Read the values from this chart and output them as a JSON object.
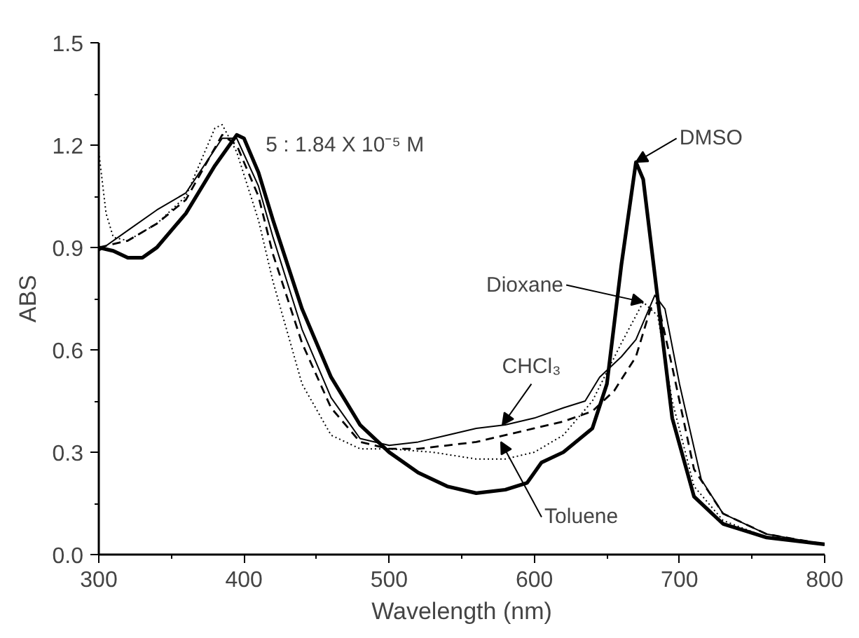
{
  "chart_data": {
    "type": "line",
    "xlabel": "Wavelength (nm)",
    "ylabel": "ABS",
    "xlim": [
      300,
      800
    ],
    "xticks": [
      300,
      400,
      500,
      600,
      700,
      800
    ],
    "ylim": [
      0,
      1.5
    ],
    "yticks": [
      {
        "value": 0,
        "label": "0.0"
      },
      0.3,
      0.6,
      0.9,
      1.2,
      1.5
    ],
    "grid": false,
    "annotations": [
      "5 : 1.84 X 10⁻⁵ M",
      {
        "text": "DMSO",
        "x": 670,
        "y": 1.15
      },
      {
        "text": "Dioxane",
        "x": 675,
        "y": 0.74
      },
      {
        "text": "CHCl₃",
        "x": 578,
        "y": 0.38
      },
      {
        "text": "Toluene",
        "x": 577,
        "y": 0.33
      }
    ],
    "series": [
      {
        "color": "#000000",
        "line_style": "solid",
        "x": [
          300,
          310,
          320,
          330,
          340,
          360,
          380,
          395,
          400,
          410,
          420,
          440,
          460,
          480,
          500,
          520,
          540,
          560,
          580,
          595,
          605,
          620,
          640,
          650,
          660,
          670,
          675,
          685,
          695,
          710,
          730,
          760,
          800
        ],
        "values": [
          0.9,
          0.89,
          0.87,
          0.87,
          0.9,
          1.0,
          1.14,
          1.23,
          1.22,
          1.12,
          0.98,
          0.72,
          0.52,
          0.38,
          0.3,
          0.24,
          0.2,
          0.18,
          0.19,
          0.21,
          0.27,
          0.3,
          0.37,
          0.5,
          0.85,
          1.15,
          1.1,
          0.75,
          0.4,
          0.17,
          0.09,
          0.05,
          0.03
        ]
      },
      {
        "color": "#000000",
        "line_style": "dotted",
        "x": [
          300,
          305,
          310,
          320,
          340,
          360,
          380,
          385,
          395,
          410,
          420,
          440,
          460,
          480,
          500,
          530,
          560,
          580,
          600,
          620,
          640,
          660,
          675,
          685,
          695,
          710,
          730,
          760,
          800
        ],
        "values": [
          1.18,
          1.0,
          0.93,
          0.92,
          0.97,
          1.05,
          1.25,
          1.26,
          1.18,
          0.98,
          0.8,
          0.5,
          0.35,
          0.31,
          0.31,
          0.3,
          0.28,
          0.28,
          0.3,
          0.35,
          0.45,
          0.62,
          0.74,
          0.7,
          0.45,
          0.2,
          0.1,
          0.05,
          0.03
        ]
      },
      {
        "color": "#000000",
        "line_style": "solid",
        "x": [
          300,
          320,
          340,
          360,
          385,
          395,
          410,
          420,
          440,
          460,
          480,
          500,
          520,
          540,
          560,
          580,
          600,
          620,
          635,
          645,
          660,
          670,
          683,
          690,
          700,
          715,
          730,
          760,
          800
        ],
        "values": [
          0.89,
          0.95,
          1.01,
          1.06,
          1.22,
          1.22,
          1.08,
          0.93,
          0.66,
          0.46,
          0.34,
          0.32,
          0.33,
          0.35,
          0.37,
          0.38,
          0.4,
          0.43,
          0.45,
          0.52,
          0.58,
          0.63,
          0.76,
          0.72,
          0.5,
          0.22,
          0.12,
          0.06,
          0.03
        ]
      },
      {
        "color": "#000000",
        "line_style": "dashed",
        "x": [
          300,
          320,
          340,
          360,
          385,
          395,
          410,
          420,
          440,
          460,
          480,
          500,
          520,
          540,
          560,
          580,
          600,
          620,
          640,
          655,
          670,
          680,
          685,
          695,
          710,
          730,
          760,
          800
        ],
        "values": [
          0.9,
          0.92,
          0.97,
          1.04,
          1.23,
          1.2,
          1.05,
          0.88,
          0.62,
          0.43,
          0.33,
          0.31,
          0.31,
          0.32,
          0.33,
          0.35,
          0.37,
          0.39,
          0.42,
          0.48,
          0.58,
          0.72,
          0.74,
          0.55,
          0.25,
          0.12,
          0.06,
          0.03
        ]
      }
    ]
  }
}
